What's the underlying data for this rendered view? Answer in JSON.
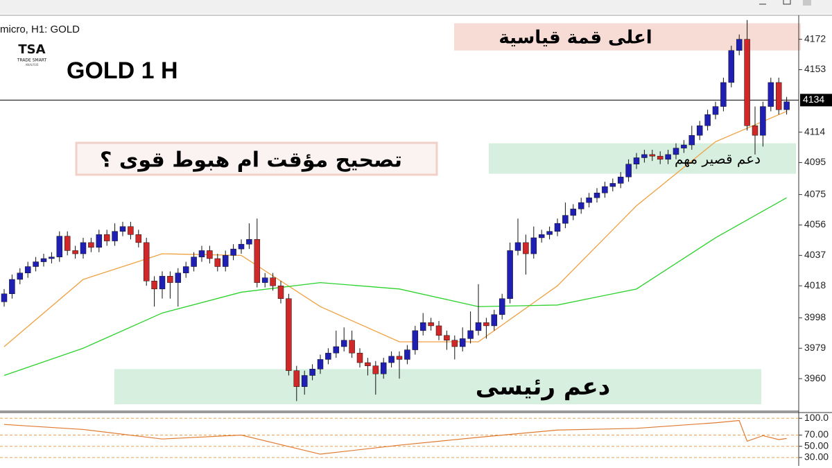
{
  "chart_data": {
    "type": "candlestick",
    "title": "GOLD 1 H",
    "symbol_label": "micro, H1:  GOLD",
    "logo": {
      "mark": "TSA",
      "name": "TRADE SMART",
      "tagline": "ANALYSIS"
    },
    "question": "تصحيح مؤقت ام هبوط قوى ؟",
    "ylim": [
      3941,
      4187
    ],
    "yticks": [
      4172,
      4153,
      4114,
      4095,
      4075,
      4056,
      4037,
      4018,
      3998,
      3979,
      3960
    ],
    "current_price": 4134,
    "up_color": "#1f1fb4",
    "down_color": "#d02828",
    "open": [
      4008,
      4013,
      4022,
      4026,
      4030,
      4033,
      4035,
      4036,
      4049,
      4040,
      4038,
      4045,
      4042,
      4050,
      4046,
      4052,
      4055,
      4050,
      4045,
      4021,
      4016,
      4024,
      4020,
      4026,
      4030,
      4036,
      4040,
      4035,
      4030,
      4037,
      4041,
      4044,
      4047,
      4020,
      4023,
      4018,
      4010,
      3965,
      3955,
      3962,
      3966,
      3972,
      3976,
      3980,
      3984,
      3976,
      3970,
      3968,
      3963,
      3970,
      3974,
      3972,
      3978,
      3990,
      3995,
      3993,
      3987,
      3984,
      3980,
      3985,
      3990,
      3995,
      3993,
      4000,
      4010,
      4040,
      4045,
      4038,
      4048,
      4050,
      4052,
      4057,
      4062,
      4066,
      4070,
      4073,
      4076,
      4080,
      4082,
      4086,
      4094,
      4098,
      4100,
      4099,
      4097,
      4100,
      4104,
      4106,
      4112,
      4118,
      4125,
      4130,
      4145,
      4165,
      4172,
      4118,
      4112,
      4130,
      4145,
      4128
    ],
    "high": [
      4016,
      4025,
      4029,
      4033,
      4036,
      4038,
      4039,
      4052,
      4052,
      4043,
      4048,
      4048,
      4053,
      4053,
      4057,
      4058,
      4058,
      4053,
      4048,
      4024,
      4027,
      4027,
      4029,
      4033,
      4039,
      4043,
      4043,
      4038,
      4040,
      4044,
      4047,
      4057,
      4060,
      4026,
      4026,
      4021,
      4013,
      3968,
      3965,
      3969,
      3975,
      3979,
      3990,
      3992,
      3990,
      3979,
      3973,
      3971,
      3973,
      3977,
      3977,
      3981,
      3993,
      4001,
      3998,
      3996,
      3990,
      3987,
      3992,
      4002,
      4019,
      3998,
      4003,
      4013,
      4045,
      4060,
      4050,
      4055,
      4053,
      4055,
      4060,
      4070,
      4069,
      4073,
      4076,
      4079,
      4083,
      4085,
      4089,
      4097,
      4101,
      4103,
      4103,
      4102,
      4103,
      4107,
      4109,
      4118,
      4121,
      4128,
      4133,
      4148,
      4168,
      4175,
      4184,
      4130,
      4133,
      4148,
      4148,
      4136
    ],
    "low": [
      4005,
      4010,
      4019,
      4023,
      4027,
      4030,
      4032,
      4033,
      4037,
      4035,
      4035,
      4039,
      4039,
      4043,
      4043,
      4049,
      4047,
      4042,
      4018,
      4005,
      4010,
      4010,
      4005,
      4023,
      4027,
      4033,
      4032,
      4027,
      4027,
      4034,
      4038,
      4041,
      4017,
      4017,
      4015,
      4007,
      3962,
      3946,
      3950,
      3959,
      3963,
      3969,
      3973,
      3977,
      3973,
      3967,
      3962,
      3950,
      3960,
      3967,
      3960,
      3969,
      3975,
      3987,
      3990,
      3984,
      3978,
      3972,
      3977,
      3982,
      3987,
      3985,
      3990,
      3997,
      4007,
      4037,
      4025,
      4035,
      4045,
      4047,
      4049,
      4054,
      4059,
      4063,
      4067,
      4070,
      4073,
      4077,
      4079,
      4083,
      4091,
      4095,
      4096,
      4094,
      4094,
      4097,
      4101,
      4103,
      4109,
      4115,
      4122,
      4127,
      4142,
      4162,
      4115,
      4100,
      4105,
      4127,
      4125,
      4125
    ],
    "close": [
      4013,
      4022,
      4026,
      4030,
      4033,
      4035,
      4036,
      4049,
      4040,
      4038,
      4045,
      4042,
      4050,
      4046,
      4052,
      4055,
      4050,
      4045,
      4021,
      4016,
      4024,
      4020,
      4026,
      4030,
      4036,
      4040,
      4035,
      4030,
      4037,
      4041,
      4044,
      4047,
      4020,
      4023,
      4018,
      4010,
      3965,
      3955,
      3962,
      3966,
      3972,
      3976,
      3980,
      3984,
      3976,
      3970,
      3968,
      3963,
      3970,
      3974,
      3972,
      3978,
      3990,
      3995,
      3993,
      3987,
      3984,
      3980,
      3985,
      3990,
      3995,
      3993,
      4000,
      4010,
      4040,
      4045,
      4038,
      4048,
      4050,
      4052,
      4057,
      4062,
      4066,
      4070,
      4073,
      4076,
      4080,
      4082,
      4086,
      4094,
      4098,
      4100,
      4099,
      4097,
      4100,
      4104,
      4106,
      4112,
      4118,
      4125,
      4130,
      4145,
      4165,
      4172,
      4118,
      4112,
      4130,
      4145,
      4128,
      4133
    ],
    "lines": [
      {
        "color": "#f0a040",
        "x": [
          0,
          10,
          20,
          30,
          40,
          50,
          60,
          70,
          80,
          90,
          99
        ],
        "values": [
          3980,
          4022,
          4038,
          4037,
          4005,
          3983,
          3983,
          4018,
          4068,
          4108,
          4127
        ]
      },
      {
        "color": "#2ad22a",
        "x": [
          0,
          10,
          20,
          30,
          40,
          50,
          60,
          70,
          80,
          90,
          99
        ],
        "values": [
          3962,
          3979,
          4001,
          4014,
          4020,
          4016,
          4005,
          4006,
          4016,
          4048,
          4073
        ]
      }
    ],
    "zones": [
      {
        "label": "اعلى قمة قياسية",
        "from": 4165,
        "to": 4182,
        "color": "#f7dcd6"
      },
      {
        "label": "دعم قصير مهم",
        "from": 4088,
        "to": 4107,
        "color": "#d6efdf"
      },
      {
        "label": "دعم رئيسى",
        "from": 3944,
        "to": 3966,
        "color": "#d6efdf"
      }
    ],
    "indicator": {
      "type": "line",
      "color": "#e07a30",
      "ylim": [
        15,
        109
      ],
      "yticks": [
        {
          "value": 100,
          "label": "100.0"
        },
        {
          "value": 70,
          "label": "70.00"
        },
        {
          "value": 50,
          "label": "50.00"
        },
        {
          "value": 30,
          "label": "30.00"
        }
      ],
      "levels_color": "#e8a050",
      "x": [
        0,
        10,
        20,
        30,
        40,
        50,
        60,
        70,
        80,
        90,
        93,
        94,
        96,
        98,
        99
      ],
      "values": [
        89,
        80,
        63,
        70,
        36,
        52,
        66,
        79,
        82,
        92,
        96,
        59,
        69,
        62,
        64
      ]
    }
  }
}
